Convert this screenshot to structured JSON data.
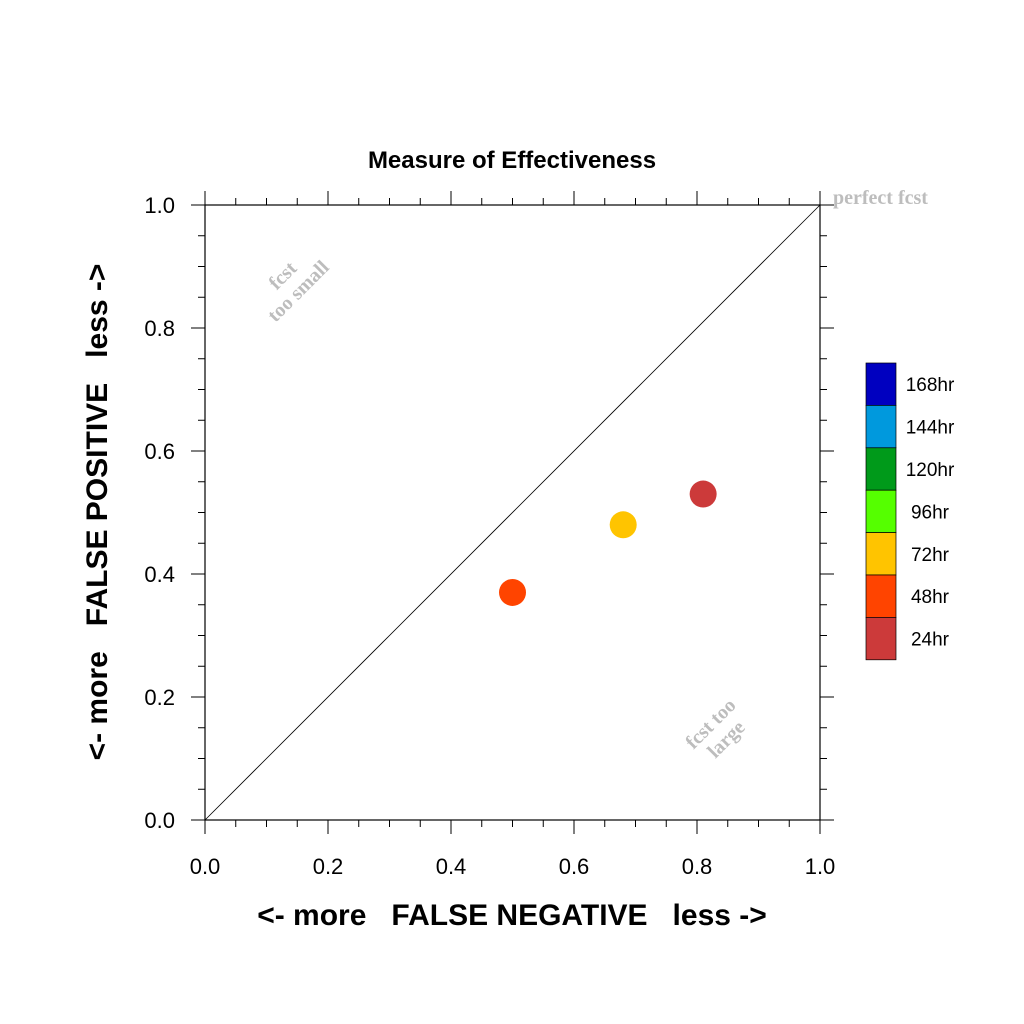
{
  "chart_data": {
    "type": "scatter",
    "title": "Measure of Effectiveness",
    "xlabel": "<- more   FALSE NEGATIVE   less ->",
    "ylabel": "<- more   FALSE POSITIVE   less ->",
    "xlim": [
      0.0,
      1.0
    ],
    "ylim": [
      0.0,
      1.0
    ],
    "xticks": [
      "0.0",
      "0.2",
      "0.4",
      "0.6",
      "0.8",
      "1.0"
    ],
    "yticks": [
      "0.0",
      "0.2",
      "0.4",
      "0.6",
      "0.8",
      "1.0"
    ],
    "xtick_values": [
      0.0,
      0.2,
      0.4,
      0.6,
      0.8,
      1.0
    ],
    "ytick_values": [
      0.0,
      0.2,
      0.4,
      0.6,
      0.8,
      1.0
    ],
    "grid": false,
    "reference_line": {
      "from": [
        0.0,
        0.0
      ],
      "to": [
        1.0,
        1.0
      ]
    },
    "annotations": {
      "perfect": "perfect fcst",
      "small_line1": "fcst",
      "small_line2": "too small",
      "large_line1": "fcst too",
      "large_line2": "large"
    },
    "legend": {
      "placement": "right",
      "entries": [
        {
          "label": "168hr",
          "color": "#0000c0"
        },
        {
          "label": "144hr",
          "color": "#0099dd"
        },
        {
          "label": "120hr",
          "color": "#009a1a"
        },
        {
          "label": "96hr",
          "color": "#55ff00"
        },
        {
          "label": "72hr",
          "color": "#ffc400"
        },
        {
          "label": "48hr",
          "color": "#ff4400"
        },
        {
          "label": "24hr",
          "color": "#cc3a3a"
        }
      ]
    },
    "points": [
      {
        "series": "24hr",
        "x": 0.81,
        "y": 0.53,
        "color": "#cc3a3a"
      },
      {
        "series": "48hr",
        "x": 0.5,
        "y": 0.37,
        "color": "#ff4400"
      },
      {
        "series": "72hr",
        "x": 0.68,
        "y": 0.48,
        "color": "#ffc400"
      }
    ]
  }
}
